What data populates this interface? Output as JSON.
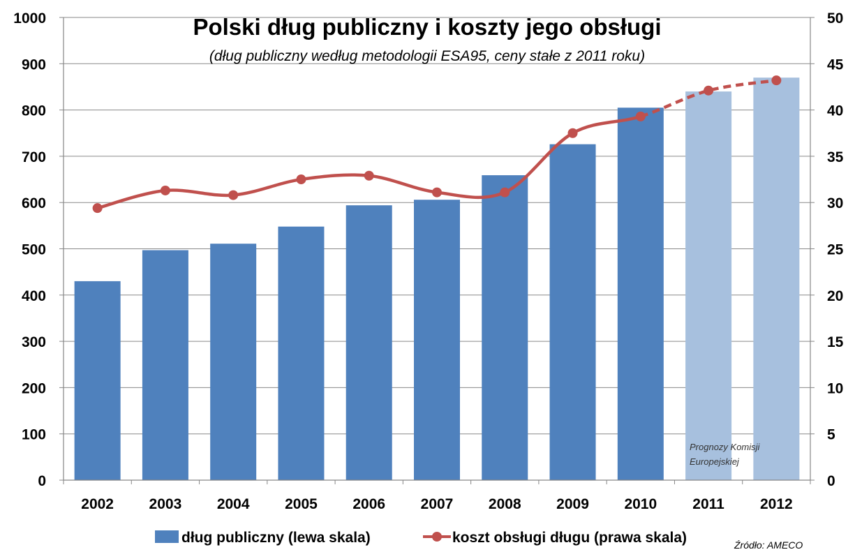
{
  "chart_data": {
    "type": "bar",
    "title": "Polski dług publiczny i koszty jego obsługi",
    "subtitle": "(dług publiczny według metodologii ESA95, ceny stałe z 2011 roku)",
    "categories": [
      "2002",
      "2003",
      "2004",
      "2005",
      "2006",
      "2007",
      "2008",
      "2009",
      "2010",
      "2011",
      "2012"
    ],
    "series": [
      {
        "name": "dług publiczny (lewa skala)",
        "type": "bar",
        "axis": "left",
        "values": [
          430,
          497,
          511,
          548,
          594,
          606,
          659,
          726,
          805,
          840,
          870
        ],
        "forecast_from_index": 9,
        "color": "#4F81BD",
        "forecast_color": "#A7C0DE"
      },
      {
        "name": "koszt obsługi długu (prawa skala)",
        "type": "line",
        "axis": "right",
        "values": [
          29.4,
          31.3,
          30.8,
          32.5,
          32.9,
          31.1,
          31.1,
          37.5,
          39.3,
          42.1,
          43.2
        ],
        "dashed_from_index": 9,
        "color": "#C0504D"
      }
    ],
    "left_axis": {
      "min": 0,
      "max": 1000,
      "step": 100,
      "ticks": [
        "0",
        "100",
        "200",
        "300",
        "400",
        "500",
        "600",
        "700",
        "800",
        "900",
        "1000"
      ]
    },
    "right_axis": {
      "min": 0,
      "max": 50,
      "step": 5,
      "ticks": [
        "0",
        "5",
        "10",
        "15",
        "20",
        "25",
        "30",
        "35",
        "40",
        "45",
        "50"
      ]
    },
    "grid": true,
    "legend_position": "bottom",
    "annotation": [
      "Prognozy Komisji",
      "Europejskiej"
    ],
    "source": "Źródło: AMECO"
  }
}
